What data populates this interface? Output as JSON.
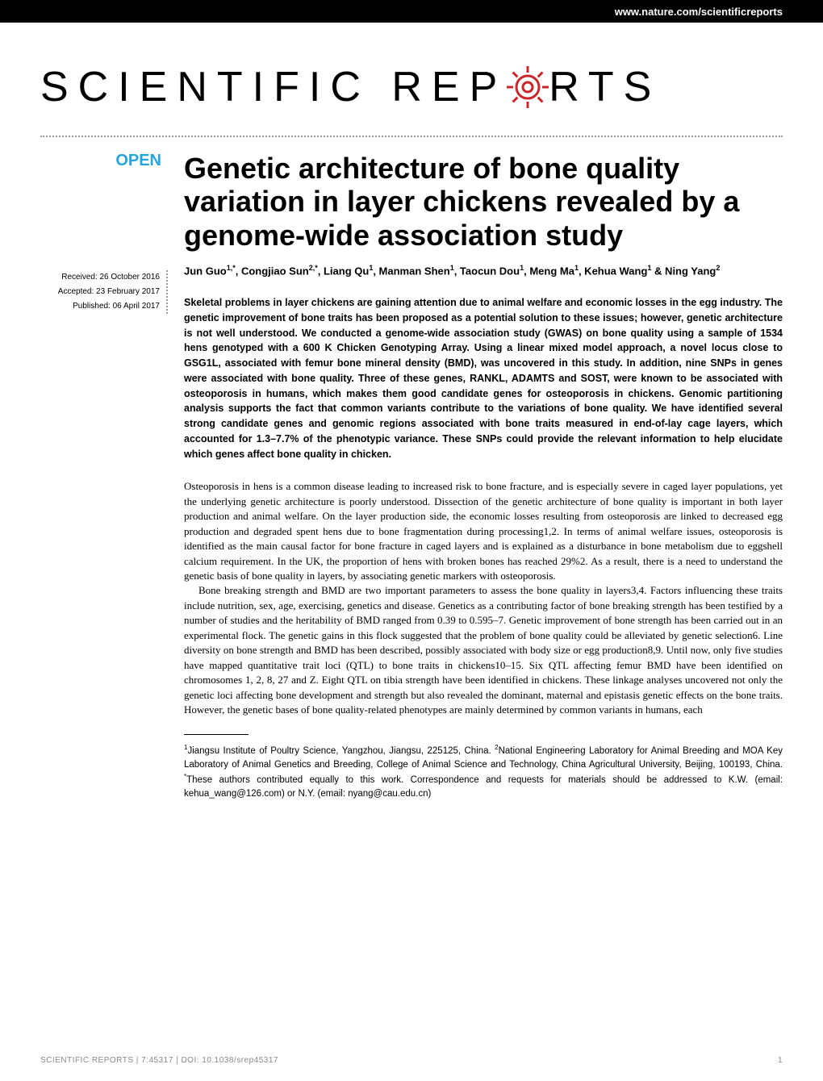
{
  "header": {
    "url": "www.nature.com/scientificreports",
    "background_color": "#000000",
    "text_color": "#ffffff"
  },
  "logo": {
    "text_before": "SCIENTIFIC",
    "text_after": "RTS",
    "text_rep": "REP",
    "gear_color": "#c8262a",
    "font_size": 52,
    "letter_spacing": 12
  },
  "badge": {
    "text": "OPEN",
    "color": "#26a4db"
  },
  "meta": {
    "received": "Received: 26 October 2016",
    "accepted": "Accepted: 23 February 2017",
    "published": "Published: 06 April 2017"
  },
  "article": {
    "title": "Genetic architecture of bone quality variation in layer chickens revealed by a genome-wide association study",
    "authors_html": "Jun Guo<sup>1,*</sup>, Congjiao Sun<sup>2,*</sup>, Liang Qu<sup>1</sup>, Manman Shen<sup>1</sup>, Taocun Dou<sup>1</sup>, Meng Ma<sup>1</sup>, Kehua Wang<sup>1</sup> & Ning Yang<sup>2</sup>",
    "abstract": "Skeletal problems in layer chickens are gaining attention due to animal welfare and economic losses in the egg industry. The genetic improvement of bone traits has been proposed as a potential solution to these issues; however, genetic architecture is not well understood. We conducted a genome-wide association study (GWAS) on bone quality using a sample of 1534 hens genotyped with a 600 K Chicken Genotyping Array. Using a linear mixed model approach, a novel locus close to GSG1L, associated with femur bone mineral density (BMD), was uncovered in this study. In addition, nine SNPs in genes were associated with bone quality. Three of these genes, RANKL, ADAMTS and SOST, were known to be associated with osteoporosis in humans, which makes them good candidate genes for osteoporosis in chickens. Genomic partitioning analysis supports the fact that common variants contribute to the variations of bone quality. We have identified several strong candidate genes and genomic regions associated with bone traits measured in end-of-lay cage layers, which accounted for 1.3–7.7% of the phenotypic variance. These SNPs could provide the relevant information to help elucidate which genes affect bone quality in chicken.",
    "body_p1": "Osteoporosis in hens is a common disease leading to increased risk to bone fracture, and is especially severe in caged layer populations, yet the underlying genetic architecture is poorly understood. Dissection of the genetic architecture of bone quality is important in both layer production and animal welfare. On the layer production side, the economic losses resulting from osteoporosis are linked to decreased egg production and degraded spent hens due to bone fragmentation during processing1,2. In terms of animal welfare issues, osteoporosis is identified as the main causal factor for bone fracture in caged layers and is explained as a disturbance in bone metabolism due to eggshell calcium requirement. In the UK, the proportion of hens with broken bones has reached 29%2. As a result, there is a need to understand the genetic basis of bone quality in layers, by associating genetic markers with osteoporosis.",
    "body_p2": "Bone breaking strength and BMD are two important parameters to assess the bone quality in layers3,4. Factors influencing these traits include nutrition, sex, age, exercising, genetics and disease. Genetics as a contributing factor of bone breaking strength has been testified by a number of studies and the heritability of BMD ranged from 0.39 to 0.595–7. Genetic improvement of bone strength has been carried out in an experimental flock. The genetic gains in this flock suggested that the problem of bone quality could be alleviated by genetic selection6. Line diversity on bone strength and BMD has been described, possibly associated with body size or egg production8,9. Until now, only five studies have mapped quantitative trait loci (QTL) to bone traits in chickens10–15. Six QTL affecting femur BMD have been identified on chromosomes 1, 2, 8, 27 and Z. Eight QTL on tibia strength have been identified in chickens. These linkage analyses uncovered not only the genetic loci affecting bone development and strength but also revealed the dominant, maternal and epistasis genetic effects on the bone traits. However, the genetic bases of bone quality-related phenotypes are mainly determined by common variants in humans, each",
    "affiliations_html": "<sup>1</sup>Jiangsu Institute of Poultry Science, Yangzhou, Jiangsu, 225125, China. <sup>2</sup>National Engineering Laboratory for Animal Breeding and MOA Key Laboratory of Animal Genetics and Breeding, College of Animal Science and Technology, China Agricultural University, Beijing, 100193, China. <sup>*</sup>These authors contributed equally to this work. Correspondence and requests for materials should be addressed to K.W. (email: kehua_wang@126.com) or N.Y. (email: nyang@cau.edu.cn)"
  },
  "footer": {
    "citation": "SCIENTIFIC REPORTS | 7:45317 | DOI: 10.1038/srep45317",
    "page": "1"
  }
}
